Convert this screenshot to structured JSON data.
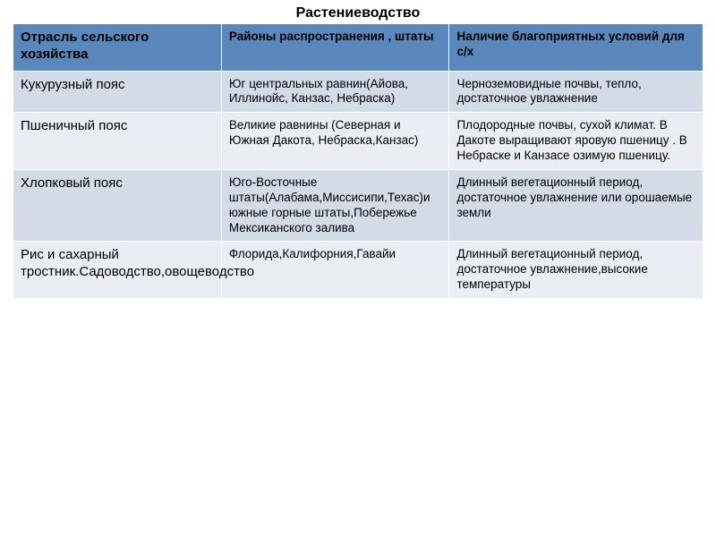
{
  "title": "Растениеводство",
  "table": {
    "header_bg": "#5b88bc",
    "row_bg_even": "#d3dbe6",
    "row_bg_odd": "#eaeef4",
    "border_color": "#ffffff",
    "text_color": "#000000",
    "header_fontsize": 15,
    "cell_fontsize": 14,
    "columns": [
      "Отрасль сельского хозяйства",
      "Районы распространения , штаты",
      "Наличие благоприятных условий для с/х"
    ],
    "column_widths": [
      "30%",
      "33%",
      "37%"
    ],
    "rows": [
      [
        "Кукурузный пояс",
        "Юг центральных равнин(Айова, Иллинойс, Канзас, Небраска)",
        "Черноземовидные почвы, тепло, достаточное увлажнение"
      ],
      [
        "Пшеничный пояс",
        "Великие равнины (Северная и Южная Дакота, Небраска,Канзас)",
        "Плодородные почвы, сухой климат. В Дакоте выращивают яровую пшеницу . В Небраске и Канзасе озимую пшеницу."
      ],
      [
        "Хлопковый пояс",
        "Юго-Восточные штаты(Алабама,Миссисипи,Техас)и южные горные штаты,Побережье Мексиканского залива",
        "Длинный вегетационный период, достаточное увлажнение или орошаемые земли"
      ],
      [
        "Рис и сахарный тростник.Садоводство,овощеводство",
        "Флорида,Калифорния,Гавайи",
        "Длинный вегетационный период, достаточное увлажнение,высокие температуры"
      ]
    ]
  }
}
